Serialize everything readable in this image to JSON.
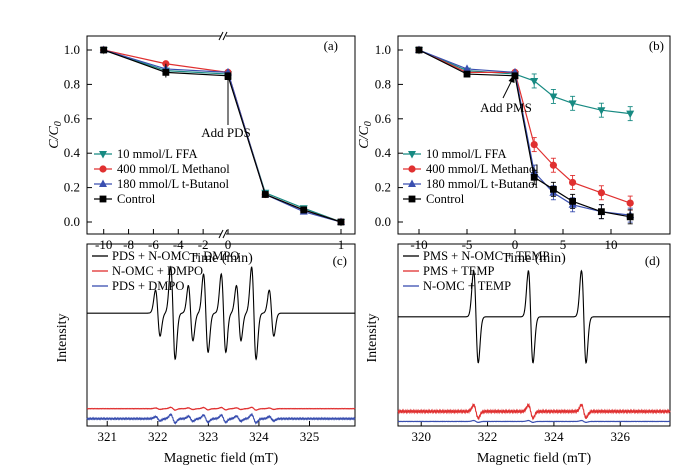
{
  "chart_data": [
    {
      "panel": "(a)",
      "type": "line",
      "xlabel": "Time (min)",
      "ylabel": "C/C0",
      "axis_break": "x between -1 and 0 and between 0 and 1",
      "xticks_left": [
        -10,
        -8,
        -6,
        -4,
        -2,
        0
      ],
      "xticks_right": [
        1
      ],
      "yticks": [
        "0.0",
        "0.2",
        "0.4",
        "0.6",
        "0.8",
        "1.0"
      ],
      "ylim": [
        -0.05,
        1.1
      ],
      "annotation": "Add PDS",
      "legend_position": "lower-left",
      "series": [
        {
          "name": "10 mmol/L FFA",
          "color": "#178a82",
          "marker": "tri-down",
          "x": [
            -10,
            -5,
            0,
            0.33,
            0.67,
            1
          ],
          "y": [
            1.0,
            0.88,
            0.86,
            0.17,
            0.08,
            0.0
          ]
        },
        {
          "name": "400 mmol/L Methanol",
          "color": "#e03030",
          "marker": "circle",
          "x": [
            -10,
            -5,
            0,
            0.33,
            0.67,
            1
          ],
          "y": [
            1.0,
            0.92,
            0.87,
            0.16,
            0.07,
            0.0
          ]
        },
        {
          "name": "180 mmol/L t-Butanol",
          "color": "#3a4fb0",
          "marker": "tri-up",
          "x": [
            -10,
            -5,
            0,
            0.33,
            0.67,
            1
          ],
          "y": [
            1.0,
            0.89,
            0.87,
            0.16,
            0.06,
            0.0
          ]
        },
        {
          "name": "Control",
          "color": "#000000",
          "marker": "square",
          "x": [
            -10,
            -5,
            0,
            0.33,
            0.67,
            1
          ],
          "y": [
            1.0,
            0.87,
            0.85,
            0.16,
            0.07,
            0.0
          ]
        }
      ]
    },
    {
      "panel": "(b)",
      "type": "line",
      "xlabel": "Time (min)",
      "ylabel": "C/C0",
      "xlim": [
        -12.5,
        13.5
      ],
      "xticks": [
        "-10",
        "-5",
        "0",
        "5",
        "10"
      ],
      "yticks": [
        "0.0",
        "0.2",
        "0.4",
        "0.6",
        "0.8",
        "1.0"
      ],
      "ylim": [
        -0.05,
        1.1
      ],
      "annotation": "Add PMS",
      "legend_position": "lower-left",
      "series": [
        {
          "name": "10 mmol/L FFA",
          "color": "#178a82",
          "marker": "tri-down",
          "x": [
            -10,
            -5,
            0,
            2,
            4,
            6,
            9,
            12
          ],
          "y": [
            1.0,
            0.88,
            0.86,
            0.82,
            0.73,
            0.69,
            0.65,
            0.63
          ]
        },
        {
          "name": "400 mmol/L Methanol",
          "color": "#e03030",
          "marker": "circle",
          "x": [
            -10,
            -5,
            0,
            2,
            4,
            6,
            9,
            12
          ],
          "y": [
            1.0,
            0.87,
            0.87,
            0.45,
            0.33,
            0.23,
            0.17,
            0.11
          ]
        },
        {
          "name": "180 mmol/L t-Butanol",
          "color": "#3a4fb0",
          "marker": "tri-up",
          "x": [
            -10,
            -5,
            0,
            2,
            4,
            6,
            9,
            12
          ],
          "y": [
            1.0,
            0.89,
            0.87,
            0.29,
            0.17,
            0.1,
            0.06,
            0.04
          ]
        },
        {
          "name": "Control",
          "color": "#000000",
          "marker": "square",
          "x": [
            -10,
            -5,
            0,
            2,
            4,
            6,
            9,
            12
          ],
          "y": [
            1.0,
            0.86,
            0.85,
            0.26,
            0.19,
            0.12,
            0.06,
            0.03
          ]
        }
      ]
    },
    {
      "panel": "(c)",
      "type": "line",
      "xlabel": "Magnetic field (mT)",
      "ylabel": "Intensity",
      "xlim": [
        320.6,
        325.9
      ],
      "xticks": [
        "321",
        "322",
        "323",
        "324",
        "325"
      ],
      "legend_position": "top-left",
      "series": [
        {
          "name": "PDS + N-OMC + DMPO",
          "color": "#000000",
          "baseline": 0.62,
          "scale": 1.0
        },
        {
          "name": "N-OMC + DMPO",
          "color": "#e03030",
          "baseline": 0.095,
          "scale": 0.03
        },
        {
          "name": "PDS + DMPO",
          "color": "#3a4fb0",
          "baseline": 0.04,
          "scale": 0.09
        }
      ],
      "peaks_mT": [
        322.0,
        322.3,
        322.65,
        322.95,
        323.3,
        323.6,
        323.9,
        324.25
      ],
      "peak_amplitudes": [
        0.5,
        1.0,
        0.6,
        0.85,
        0.85,
        0.6,
        1.0,
        0.5
      ]
    },
    {
      "panel": "(d)",
      "type": "line",
      "xlabel": "Magnetic field (mT)",
      "ylabel": "Intensity",
      "xlim": [
        319.3,
        327.5
      ],
      "xticks": [
        "320",
        "322",
        "324",
        "326"
      ],
      "legend_position": "top-left",
      "series": [
        {
          "name": "PMS + N-OMC + TEMP",
          "color": "#000000",
          "baseline": 0.6,
          "scale": 1.0
        },
        {
          "name": "PMS + TEMP",
          "color": "#e03030",
          "baseline": 0.08,
          "scale": 0.14
        },
        {
          "name": "N-OMC + TEMP",
          "color": "#3a4fb0",
          "baseline": 0.025,
          "scale": 0.02
        }
      ],
      "peaks_mT": [
        321.65,
        323.3,
        324.9
      ],
      "peak_amplitudes": [
        1.0,
        1.0,
        1.0
      ]
    }
  ]
}
